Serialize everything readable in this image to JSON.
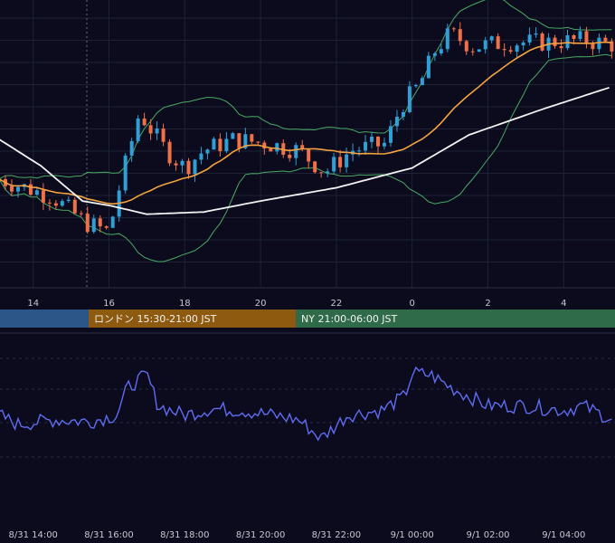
{
  "colors": {
    "background": "#0b0b1d",
    "grid": "#1e2236",
    "candle_up": "#2f9fd6",
    "candle_down": "#f0704a",
    "ma_short": "#f4a340",
    "ma_long": "#f2f2f2",
    "bollinger": "#4aa862",
    "oscillator": "#5f6cf0",
    "session_tokyo": "#2b5687",
    "session_london": "#8d5a10",
    "session_ny": "#2f6b48"
  },
  "sessions": [
    {
      "key": "tokyo",
      "label": ""
    },
    {
      "key": "london",
      "label": "ロンドン 15:30-21:00 JST"
    },
    {
      "key": "ny",
      "label": "NY 21:00-06:00 JST"
    }
  ],
  "chart_data": [
    {
      "type": "candlestick",
      "x_unit": "hour (JST)",
      "x_tick_labels": [
        "14",
        "16",
        "18",
        "20",
        "22",
        "0",
        "2",
        "4"
      ],
      "x_tick_hours": [
        14,
        16,
        18,
        20,
        22,
        24,
        26,
        28
      ],
      "x_range": [
        13.1,
        29.3
      ],
      "overlays": [
        "short moving average",
        "long moving average",
        "bollinger bands"
      ],
      "grid": true,
      "series": [
        {
          "kind": "price",
          "anchors": [
            [
              13.1,
              0.42
            ],
            [
              14.5,
              0.34
            ],
            [
              15.4,
              0.22
            ],
            [
              16.0,
              0.18
            ],
            [
              16.3,
              0.4
            ],
            [
              16.8,
              0.72
            ],
            [
              17.5,
              0.55
            ],
            [
              18.0,
              0.47
            ],
            [
              18.5,
              0.55
            ],
            [
              19.3,
              0.6
            ],
            [
              20.2,
              0.58
            ],
            [
              21.0,
              0.55
            ],
            [
              21.7,
              0.45
            ],
            [
              22.4,
              0.55
            ],
            [
              23.3,
              0.58
            ],
            [
              23.7,
              0.75
            ],
            [
              24.2,
              0.85
            ],
            [
              24.6,
              1.0
            ],
            [
              25.0,
              1.08
            ],
            [
              25.6,
              1.02
            ],
            [
              26.5,
              1.04
            ],
            [
              27.5,
              1.04
            ],
            [
              28.5,
              1.05
            ],
            [
              29.3,
              1.03
            ]
          ]
        },
        {
          "kind": "ma_long",
          "anchors": [
            [
              13.1,
              0.6
            ],
            [
              14.2,
              0.48
            ],
            [
              15.3,
              0.32
            ],
            [
              16.0,
              0.3
            ],
            [
              17.0,
              0.26
            ],
            [
              18.5,
              0.27
            ],
            [
              20.0,
              0.32
            ],
            [
              22.0,
              0.38
            ],
            [
              24.0,
              0.47
            ],
            [
              25.5,
              0.62
            ],
            [
              27.5,
              0.74
            ],
            [
              29.3,
              0.84
            ]
          ]
        }
      ]
    },
    {
      "type": "line",
      "name": "",
      "x_tick_labels": [
        "8/31 14:00",
        "8/31 16:00",
        "8/31 18:00",
        "8/31 20:00",
        "8/31 22:00",
        "9/1 00:00",
        "9/1 02:00",
        "9/1 04:00"
      ],
      "x_tick_hours": [
        14,
        16,
        18,
        20,
        22,
        24,
        26,
        28
      ],
      "anchors": [
        [
          13.1,
          0.45
        ],
        [
          13.6,
          0.35
        ],
        [
          14.6,
          0.4
        ],
        [
          15.5,
          0.38
        ],
        [
          16.2,
          0.45
        ],
        [
          16.5,
          0.75
        ],
        [
          17.0,
          0.88
        ],
        [
          17.3,
          0.55
        ],
        [
          18.0,
          0.45
        ],
        [
          18.7,
          0.52
        ],
        [
          19.5,
          0.5
        ],
        [
          20.3,
          0.45
        ],
        [
          21.0,
          0.4
        ],
        [
          21.6,
          0.2
        ],
        [
          22.3,
          0.45
        ],
        [
          23.2,
          0.5
        ],
        [
          23.8,
          0.65
        ],
        [
          24.0,
          0.9
        ],
        [
          24.5,
          0.88
        ],
        [
          25.0,
          0.75
        ],
        [
          25.5,
          0.65
        ],
        [
          26.0,
          0.55
        ],
        [
          27.0,
          0.55
        ],
        [
          28.0,
          0.5
        ],
        [
          28.5,
          0.55
        ],
        [
          29.3,
          0.4
        ]
      ]
    }
  ]
}
